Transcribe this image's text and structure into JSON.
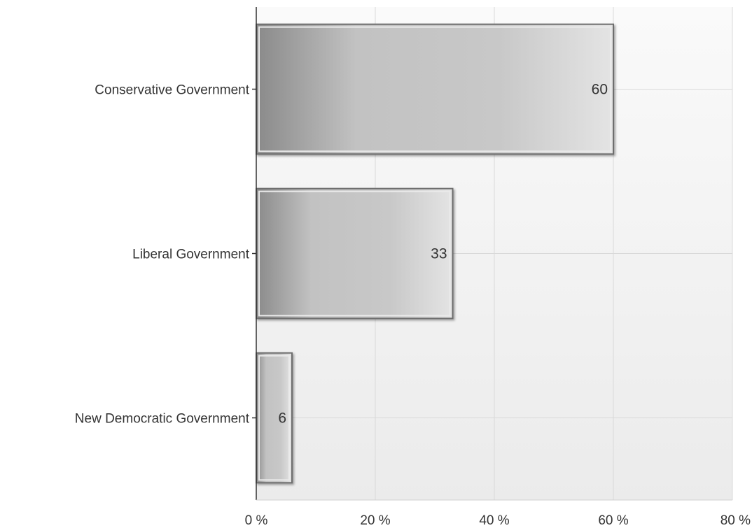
{
  "chart_data": {
    "type": "bar",
    "orientation": "horizontal",
    "categories": [
      "Conservative Government",
      "Liberal Government",
      "New Democratic Government"
    ],
    "values": [
      60,
      33,
      6
    ],
    "data_labels": [
      "60",
      "33",
      "6"
    ],
    "x_ticks": [
      "0 %",
      "20 %",
      "40 %",
      "60 %",
      "80 %"
    ],
    "xlim": [
      0,
      80
    ],
    "x_tick_values": [
      0,
      20,
      40,
      60,
      80
    ],
    "grid": true,
    "legend": "none",
    "colors": {
      "bar_dark": "#8a8a8a",
      "bar_mid": "#c4c4c4",
      "bar_light": "#e2e2e2",
      "bar_border": "#6e6e6e",
      "grid": "#d9d9d9",
      "axis": "#333333"
    }
  }
}
